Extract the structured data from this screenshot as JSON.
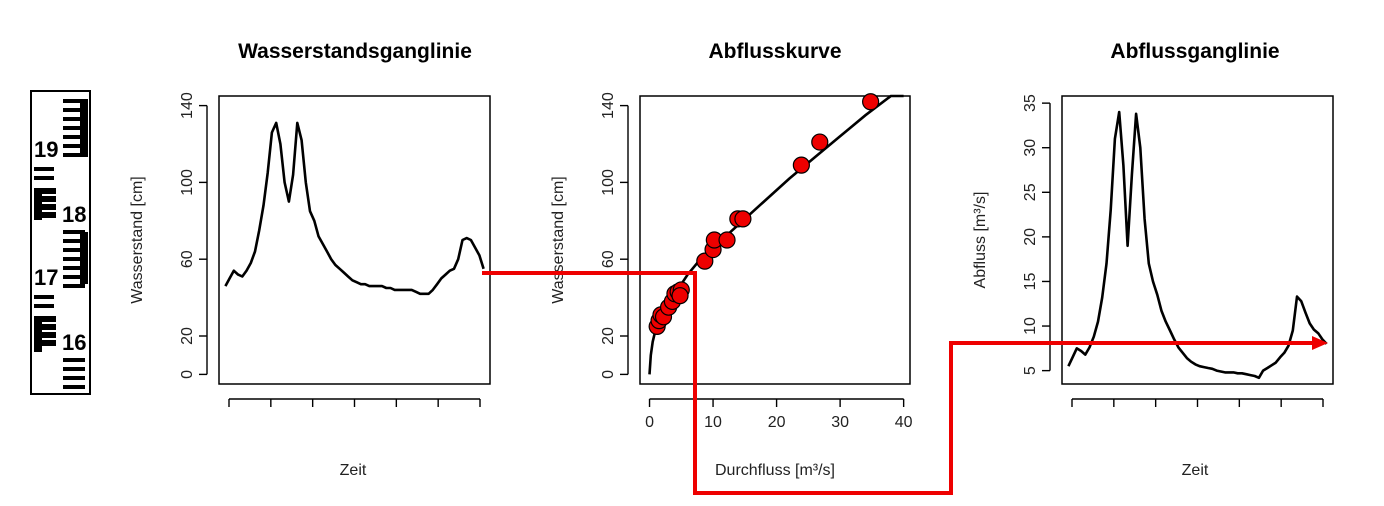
{
  "gauge": {
    "labels": [
      "19",
      "18",
      "17",
      "16"
    ]
  },
  "chart_data": [
    {
      "type": "line",
      "title": "Wasserstandsganglinie",
      "xlabel": "Zeit",
      "ylabel": "Wasserstand [cm]",
      "ylim": [
        -5,
        145
      ],
      "yticks": [
        0,
        20,
        60,
        100,
        140
      ],
      "xticks_labeled": false,
      "x": [
        0,
        1,
        2,
        3,
        4,
        5,
        6,
        7,
        8,
        9,
        10,
        11,
        12,
        13,
        14,
        15,
        16,
        17,
        18,
        19,
        20,
        21,
        22,
        23,
        24,
        25,
        26,
        27,
        28,
        29,
        30,
        31,
        32,
        33,
        34,
        35,
        36,
        37,
        38,
        39,
        40,
        41,
        42,
        43,
        44,
        45,
        46,
        47,
        48,
        49,
        50,
        51,
        52,
        53,
        54,
        55,
        56,
        57,
        58,
        59,
        60,
        61
      ],
      "y": [
        46,
        50,
        54,
        52,
        51,
        54,
        58,
        64,
        75,
        88,
        105,
        126,
        131,
        120,
        100,
        90,
        104,
        131,
        122,
        100,
        85,
        80,
        72,
        68,
        64,
        60,
        57,
        55,
        53,
        51,
        49,
        48,
        47,
        47,
        46,
        46,
        46,
        46,
        45,
        45,
        44,
        44,
        44,
        44,
        44,
        43,
        42,
        42,
        42,
        44,
        47,
        50,
        52,
        54,
        55,
        60,
        70,
        71,
        70,
        66,
        62,
        55
      ],
      "color": "#000000"
    },
    {
      "type": "scatter",
      "title": "Abflusskurve",
      "xlabel": "Durchfluss [m³/s]",
      "ylabel": "Wasserstand [cm]",
      "xlim": [
        -1.5,
        41
      ],
      "ylim": [
        -5,
        145
      ],
      "xticks": [
        0,
        10,
        20,
        30,
        40
      ],
      "yticks": [
        0,
        20,
        60,
        100,
        140
      ],
      "points": [
        {
          "x": 1.2,
          "y": 25
        },
        {
          "x": 1.5,
          "y": 28
        },
        {
          "x": 1.8,
          "y": 31
        },
        {
          "x": 2.2,
          "y": 30
        },
        {
          "x": 3.0,
          "y": 35
        },
        {
          "x": 3.6,
          "y": 38
        },
        {
          "x": 4.0,
          "y": 42
        },
        {
          "x": 4.5,
          "y": 43
        },
        {
          "x": 5.0,
          "y": 44
        },
        {
          "x": 4.8,
          "y": 41
        },
        {
          "x": 8.7,
          "y": 59
        },
        {
          "x": 10.0,
          "y": 65
        },
        {
          "x": 10.2,
          "y": 70
        },
        {
          "x": 12.2,
          "y": 70
        },
        {
          "x": 13.9,
          "y": 81
        },
        {
          "x": 14.7,
          "y": 81
        },
        {
          "x": 23.9,
          "y": 109
        },
        {
          "x": 26.8,
          "y": 121
        },
        {
          "x": 34.8,
          "y": 142
        }
      ],
      "fit_curve": {
        "x": [
          0,
          0.2,
          0.5,
          1,
          2,
          3,
          4,
          5,
          6,
          7,
          8,
          10,
          12,
          15,
          18,
          22,
          26,
          30,
          34,
          38,
          40
        ],
        "y": [
          0,
          10,
          17,
          24,
          31,
          37,
          42,
          47,
          52,
          56,
          60,
          66,
          72,
          81,
          90,
          102,
          113,
          124,
          135,
          145,
          150
        ]
      },
      "marker_color": "#ee0000",
      "line_color": "#000000"
    },
    {
      "type": "line",
      "title": "Abflussganglinie",
      "xlabel": "Zeit",
      "ylabel": "Abfluss [m³/s]",
      "ylim": [
        3.5,
        35.8
      ],
      "yticks": [
        5,
        10,
        15,
        20,
        25,
        30,
        35
      ],
      "xticks_labeled": false,
      "x": [
        0,
        1,
        2,
        3,
        4,
        5,
        6,
        7,
        8,
        9,
        10,
        11,
        12,
        13,
        14,
        15,
        16,
        17,
        18,
        19,
        20,
        21,
        22,
        23,
        24,
        25,
        26,
        27,
        28,
        29,
        30,
        31,
        32,
        33,
        34,
        35,
        36,
        37,
        38,
        39,
        40,
        41,
        42,
        43,
        44,
        45,
        46,
        47,
        48,
        49,
        50,
        51,
        52,
        53,
        54,
        55,
        56,
        57,
        58,
        59,
        60,
        61
      ],
      "y": [
        5.5,
        6.5,
        7.5,
        7.2,
        6.8,
        7.6,
        8.8,
        10.5,
        13.2,
        17,
        23,
        31,
        34,
        28,
        19,
        27,
        33.8,
        30,
        22,
        17,
        15,
        13.5,
        11.7,
        10.5,
        9.5,
        8.5,
        7.6,
        7.0,
        6.4,
        6.0,
        5.7,
        5.5,
        5.4,
        5.3,
        5.2,
        5.0,
        4.9,
        4.8,
        4.8,
        4.8,
        4.7,
        4.7,
        4.6,
        4.5,
        4.4,
        4.2,
        5.0,
        5.3,
        5.6,
        5.9,
        6.5,
        7.0,
        7.8,
        9.5,
        13.3,
        12.8,
        11.5,
        10.3,
        9.6,
        9.2,
        8.5,
        8.0
      ],
      "color": "#000000"
    }
  ],
  "annotation": {
    "color": "#ee0000"
  }
}
